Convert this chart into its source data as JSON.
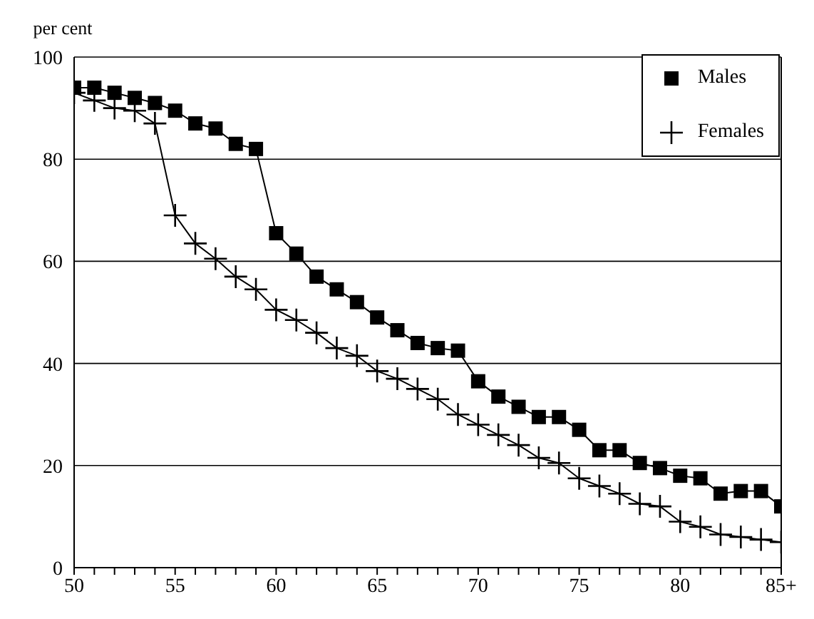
{
  "chart_data": {
    "type": "line",
    "ylabel": "per cent",
    "x": [
      50,
      51,
      52,
      53,
      54,
      55,
      56,
      57,
      58,
      59,
      60,
      61,
      62,
      63,
      64,
      65,
      66,
      67,
      68,
      69,
      70,
      71,
      72,
      73,
      74,
      75,
      76,
      77,
      78,
      79,
      80,
      81,
      82,
      83,
      84,
      85
    ],
    "series": [
      {
        "name": "Males",
        "color": "#000000",
        "marker": "square",
        "values": [
          94,
          94,
          93,
          92,
          91,
          89.5,
          87,
          86,
          83,
          82,
          65.5,
          61.5,
          57,
          54.5,
          52,
          49,
          46.5,
          44,
          43,
          42.5,
          36.5,
          33.5,
          31.5,
          29.5,
          29.5,
          27,
          23,
          23,
          20.5,
          19.5,
          18,
          17.5,
          14.5,
          15,
          15,
          12
        ]
      },
      {
        "name": "Females",
        "color": "#000000",
        "marker": "cross",
        "values": [
          93,
          91.5,
          90,
          89.5,
          87,
          69,
          63.5,
          60.5,
          57,
          54.5,
          50.5,
          48.5,
          46,
          43,
          41.5,
          38.5,
          37,
          35,
          33,
          30,
          28,
          26,
          24,
          21.5,
          20.5,
          17.5,
          16,
          14.5,
          12.5,
          12,
          9,
          8,
          6.5,
          6,
          5.5,
          5
        ]
      }
    ],
    "xlim": [
      50,
      85
    ],
    "xticks": [
      50,
      {
        "value": 51,
        "label": null
      },
      {
        "value": 52,
        "label": null
      },
      {
        "value": 53,
        "label": null
      },
      {
        "value": 54,
        "label": null
      },
      55,
      {
        "value": 56,
        "label": null
      },
      {
        "value": 57,
        "label": null
      },
      {
        "value": 58,
        "label": null
      },
      {
        "value": 59,
        "label": null
      },
      60,
      {
        "value": 61,
        "label": null
      },
      {
        "value": 62,
        "label": null
      },
      {
        "value": 63,
        "label": null
      },
      {
        "value": 64,
        "label": null
      },
      65,
      {
        "value": 66,
        "label": null
      },
      {
        "value": 67,
        "label": null
      },
      {
        "value": 68,
        "label": null
      },
      {
        "value": 69,
        "label": null
      },
      70,
      {
        "value": 71,
        "label": null
      },
      {
        "value": 72,
        "label": null
      },
      {
        "value": 73,
        "label": null
      },
      {
        "value": 74,
        "label": null
      },
      75,
      {
        "value": 76,
        "label": null
      },
      {
        "value": 77,
        "label": null
      },
      {
        "value": 78,
        "label": null
      },
      {
        "value": 79,
        "label": null
      },
      80,
      {
        "value": 81,
        "label": null
      },
      {
        "value": 82,
        "label": null
      },
      {
        "value": 83,
        "label": null
      },
      {
        "value": 84,
        "label": null
      },
      {
        "value": 85,
        "label": "85+"
      }
    ],
    "ylim": [
      0,
      100
    ],
    "yticks": [
      0,
      20,
      40,
      60,
      80,
      100
    ],
    "grid": "y",
    "legend": "top right",
    "line_style": "solid"
  }
}
